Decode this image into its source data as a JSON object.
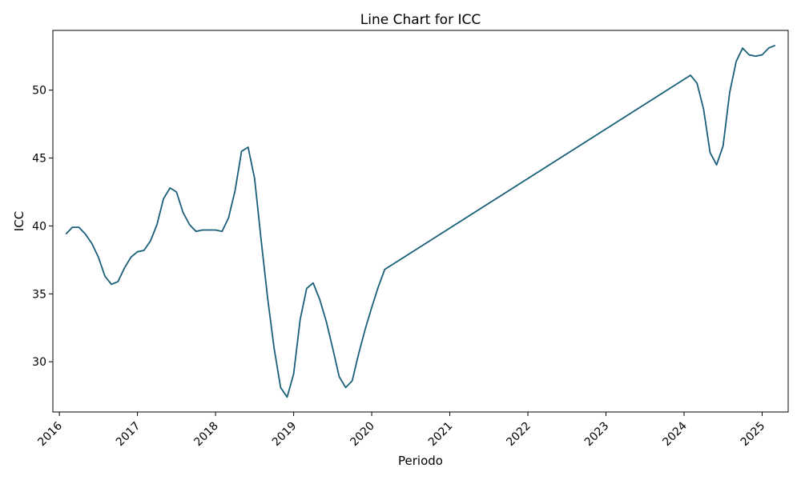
{
  "chart_data": {
    "type": "line",
    "title": "Line Chart for ICC",
    "xlabel": "Periodo",
    "ylabel": "ICC",
    "grid": false,
    "legend": "none",
    "line_color": "#1a5f7a",
    "x_ticks": [
      "2016",
      "2017",
      "2018",
      "2019",
      "2020",
      "2021",
      "2022",
      "2023",
      "2024",
      "2025"
    ],
    "y_ticks": [
      30,
      35,
      40,
      45,
      50
    ],
    "xlim": [
      "2015-12-01",
      "2025-05-01"
    ],
    "ylim": [
      26.3,
      54.4
    ],
    "series": [
      {
        "x": [
          "2016-02",
          "2016-03",
          "2016-04",
          "2016-05",
          "2016-06",
          "2016-07",
          "2016-08",
          "2016-09",
          "2016-10",
          "2016-11",
          "2016-12",
          "2017-01",
          "2017-02",
          "2017-03",
          "2017-04",
          "2017-05",
          "2017-06",
          "2017-07",
          "2017-08",
          "2017-09",
          "2017-10",
          "2017-11",
          "2017-12",
          "2018-01",
          "2018-02",
          "2018-03",
          "2018-04",
          "2018-05",
          "2018-06",
          "2018-07",
          "2018-08",
          "2018-09",
          "2018-10",
          "2018-11",
          "2018-12",
          "2019-01",
          "2019-02",
          "2019-03",
          "2019-04",
          "2019-05",
          "2019-06",
          "2019-07",
          "2019-08",
          "2019-09",
          "2019-10",
          "2019-11",
          "2019-12",
          "2020-01",
          "2020-02",
          "2020-03",
          "2024-02",
          "2024-03",
          "2024-04",
          "2024-05",
          "2024-06",
          "2024-07",
          "2024-08",
          "2024-09",
          "2024-10",
          "2024-11",
          "2024-12",
          "2025-01",
          "2025-02",
          "2025-03"
        ],
        "values": [
          39.4,
          39.9,
          39.9,
          39.4,
          38.7,
          37.7,
          36.3,
          35.7,
          35.9,
          36.9,
          37.7,
          38.1,
          38.2,
          38.9,
          40.1,
          42.0,
          42.8,
          42.5,
          41.0,
          40.1,
          39.6,
          39.7,
          39.7,
          39.7,
          39.6,
          40.6,
          42.6,
          45.5,
          45.8,
          43.5,
          39.0,
          34.7,
          31.0,
          28.1,
          27.4,
          29.1,
          33.1,
          35.4,
          35.8,
          34.6,
          33.0,
          31.0,
          28.9,
          28.1,
          28.6,
          30.6,
          32.4,
          34.0,
          35.5,
          36.8,
          51.1,
          50.5,
          48.6,
          45.4,
          44.5,
          45.9,
          49.8,
          52.1,
          53.1,
          52.6,
          52.5,
          52.6,
          53.1,
          53.3
        ]
      }
    ]
  }
}
